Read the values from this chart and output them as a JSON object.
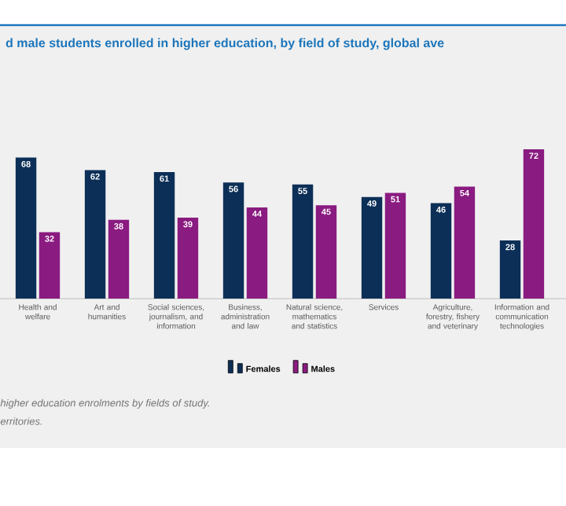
{
  "chart_data": {
    "type": "bar",
    "title": "d male students enrolled in higher education, by field of study, global ave",
    "categories": [
      "Health and welfare",
      "Art and humanities",
      "Social sciences, journalism, and information",
      "Business, administration and law",
      "Natural science, mathematics and statistics",
      "Services",
      "Agriculture, forestry, fishery and veterinary",
      "Information and communication technologies"
    ],
    "series": [
      {
        "name": "Females",
        "color": "#0c2f57",
        "values": [
          68,
          62,
          61,
          56,
          55,
          49,
          46,
          28
        ]
      },
      {
        "name": "Males",
        "color": "#8a1b80",
        "values": [
          32,
          38,
          39,
          44,
          45,
          51,
          54,
          72
        ]
      }
    ],
    "ylim": [
      0,
      72
    ],
    "tick_labels": "x",
    "data_labels": true,
    "legend": "bottom",
    "annotations": [
      "higher education enrolments by fields of study.",
      "erritories."
    ]
  }
}
